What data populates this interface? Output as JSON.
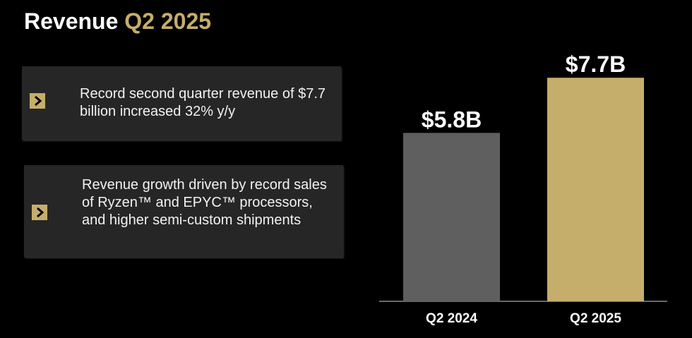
{
  "page": {
    "title_main": "Revenue",
    "title_accent": "Q2 2025"
  },
  "cards": [
    {
      "text": "Record second quarter revenue of $7.7 billion increased 32% y/y"
    },
    {
      "text": "Revenue growth driven by record sales of Ryzen™ and EPYC™ processors, and higher semi-custom shipments"
    }
  ],
  "colors": {
    "background": "#000000",
    "gold": "#c5ae6b",
    "gray_bar": "#5f5f5f",
    "card": "#262626"
  },
  "chart_data": {
    "type": "bar",
    "categories": [
      "Q2 2024",
      "Q2 2025"
    ],
    "values": [
      5.8,
      7.7
    ],
    "data_labels": [
      "$5.8B",
      "$7.7B"
    ],
    "bar_colors": [
      "#5f5f5f",
      "#c5ae6b"
    ],
    "unit": "$B",
    "ylim": [
      0,
      9.6
    ],
    "title": "",
    "xlabel": "",
    "ylabel": "",
    "grid": false
  }
}
